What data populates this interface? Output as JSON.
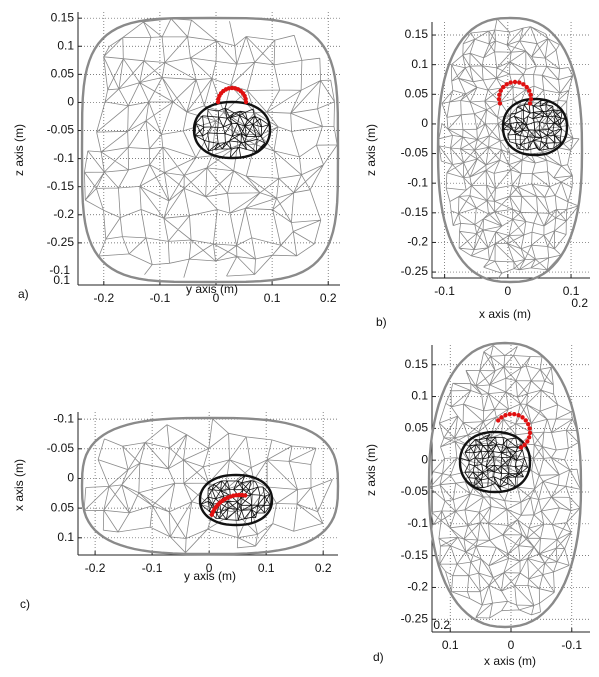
{
  "chart_data": [
    {
      "type": "wireframe",
      "panel": "a)",
      "xlabel": "y axis (m)",
      "ylabel": "z axis (m)",
      "xlim": [
        -0.246,
        0.221
      ],
      "ylim": [
        -0.325,
        0.161
      ],
      "xticks": [
        -0.2,
        -0.1,
        0,
        0.1,
        0.2
      ],
      "yticks": [
        0.15,
        0.1,
        0.05,
        0,
        -0.05,
        -0.1,
        -0.15,
        -0.2,
        -0.25
      ],
      "annotations": [
        "-0.1",
        "0.1"
      ]
    },
    {
      "type": "wireframe",
      "panel": "b)",
      "xlabel": "x axis (m)",
      "ylabel": "z axis (m)",
      "xlim": [
        -0.12,
        0.13
      ],
      "ylim": [
        -0.26,
        0.172
      ],
      "xticks": [
        -0.1,
        0,
        0.1
      ],
      "yticks": [
        0.15,
        0.1,
        0.05,
        0,
        -0.05,
        -0.1,
        -0.15,
        -0.2,
        -0.25
      ],
      "annotations": [
        "0.2"
      ]
    },
    {
      "type": "wireframe",
      "panel": "c)",
      "xlabel": "y axis (m)",
      "ylabel": "x axis (m)",
      "xlim": [
        -0.23,
        0.226
      ],
      "ylim": [
        0.129,
        -0.112
      ],
      "xticks": [
        -0.2,
        -0.1,
        0,
        0.1,
        0.2
      ],
      "yticks": [
        -0.1,
        -0.05,
        0,
        0.05,
        0.1
      ],
      "annotations": []
    },
    {
      "type": "wireframe",
      "panel": "d)",
      "xlabel": "x axis (m)",
      "ylabel": "z axis (m)",
      "xlim": [
        0.13,
        -0.13
      ],
      "ylim": [
        -0.27,
        0.181
      ],
      "xticks": [
        0.1,
        0,
        -0.1
      ],
      "yticks": [
        0.15,
        0.1,
        0.05,
        0,
        -0.05,
        -0.1,
        -0.15,
        -0.2,
        -0.25
      ],
      "annotations": [
        "0.2"
      ]
    }
  ]
}
